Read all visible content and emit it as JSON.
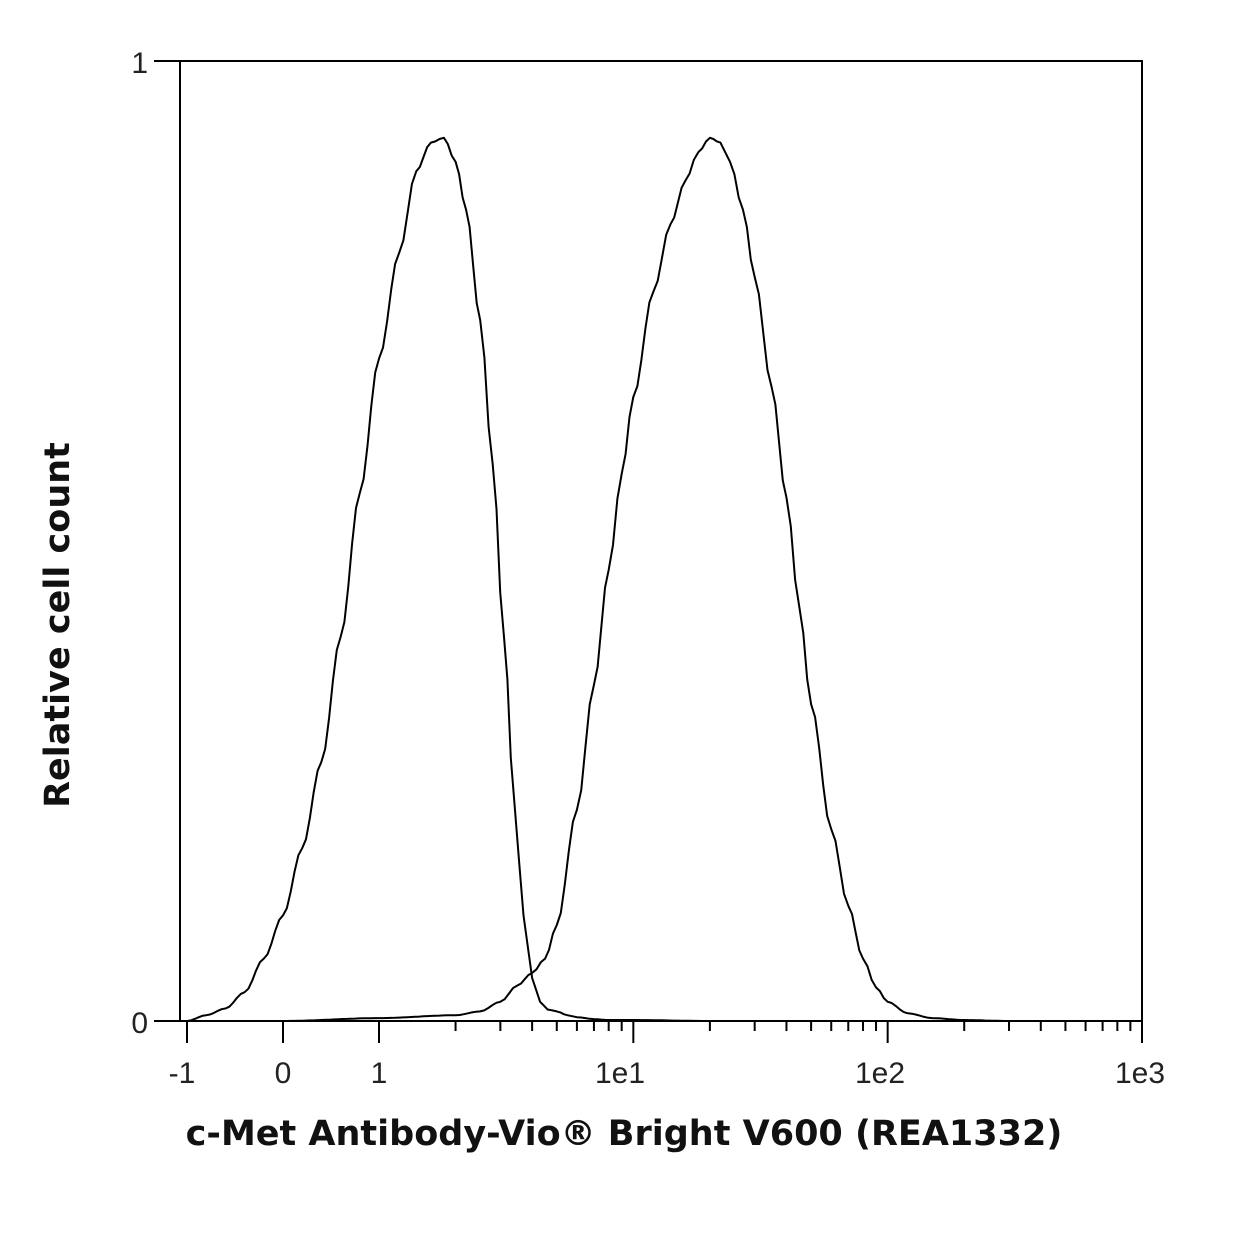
{
  "chart_data": {
    "type": "line",
    "title": "",
    "xlabel": "c-Met Antibody-Vio® Bright V600 (REA1332)",
    "ylabel": "Relative cell count",
    "x_scale": "biexponential",
    "x_ticks": [
      "-1",
      "0",
      "1",
      "1e1",
      "1e2",
      "1e3"
    ],
    "y_ticks": [
      "0",
      "1"
    ],
    "ylim": [
      0,
      1
    ],
    "grid": false,
    "series": [
      {
        "color": "#000000",
        "points": [
          [
            -1,
            0.0
          ],
          [
            -0.8,
            0.006
          ],
          [
            -0.6,
            0.013
          ],
          [
            -0.4,
            0.03
          ],
          [
            -0.2,
            0.065
          ],
          [
            0.0,
            0.11
          ],
          [
            0.2,
            0.18
          ],
          [
            0.4,
            0.27
          ],
          [
            0.6,
            0.4
          ],
          [
            0.8,
            0.55
          ],
          [
            1.0,
            0.69
          ],
          [
            1.2,
            0.8
          ],
          [
            1.4,
            0.885
          ],
          [
            1.6,
            0.915
          ],
          [
            1.8,
            0.92
          ],
          [
            2.0,
            0.895
          ],
          [
            2.2,
            0.845
          ],
          [
            2.5,
            0.73
          ],
          [
            2.8,
            0.58
          ],
          [
            3.1,
            0.4
          ],
          [
            3.4,
            0.23
          ],
          [
            3.7,
            0.11
          ],
          [
            4.0,
            0.045
          ],
          [
            4.3,
            0.02
          ],
          [
            4.6,
            0.012
          ],
          [
            5.0,
            0.01
          ],
          [
            5.5,
            0.006
          ],
          [
            6.0,
            0.004
          ],
          [
            7.0,
            0.002
          ],
          [
            8.0,
            0.001
          ],
          [
            10.0,
            0.001
          ],
          [
            20.0,
            0.0
          ],
          [
            1000.0,
            0.0
          ]
        ]
      },
      {
        "color": "#000000",
        "points": [
          [
            0.0,
            0.0
          ],
          [
            1.0,
            0.003
          ],
          [
            2.0,
            0.006
          ],
          [
            2.5,
            0.01
          ],
          [
            3.0,
            0.02
          ],
          [
            3.5,
            0.037
          ],
          [
            4.0,
            0.05
          ],
          [
            4.5,
            0.065
          ],
          [
            5.0,
            0.1
          ],
          [
            6.0,
            0.22
          ],
          [
            7.0,
            0.35
          ],
          [
            8.0,
            0.47
          ],
          [
            9.0,
            0.57
          ],
          [
            10.0,
            0.65
          ],
          [
            12.0,
            0.76
          ],
          [
            14.0,
            0.83
          ],
          [
            16.0,
            0.875
          ],
          [
            18.0,
            0.905
          ],
          [
            20.0,
            0.92
          ],
          [
            22.0,
            0.915
          ],
          [
            24.0,
            0.895
          ],
          [
            27.0,
            0.845
          ],
          [
            30.0,
            0.775
          ],
          [
            35.0,
            0.66
          ],
          [
            40.0,
            0.545
          ],
          [
            45.0,
            0.43
          ],
          [
            50.0,
            0.33
          ],
          [
            60.0,
            0.2
          ],
          [
            70.0,
            0.12
          ],
          [
            80.0,
            0.065
          ],
          [
            90.0,
            0.035
          ],
          [
            100.0,
            0.02
          ],
          [
            120.0,
            0.008
          ],
          [
            150.0,
            0.003
          ],
          [
            200.0,
            0.001
          ],
          [
            300.0,
            0.0
          ],
          [
            1000.0,
            0.0
          ]
        ]
      }
    ]
  }
}
